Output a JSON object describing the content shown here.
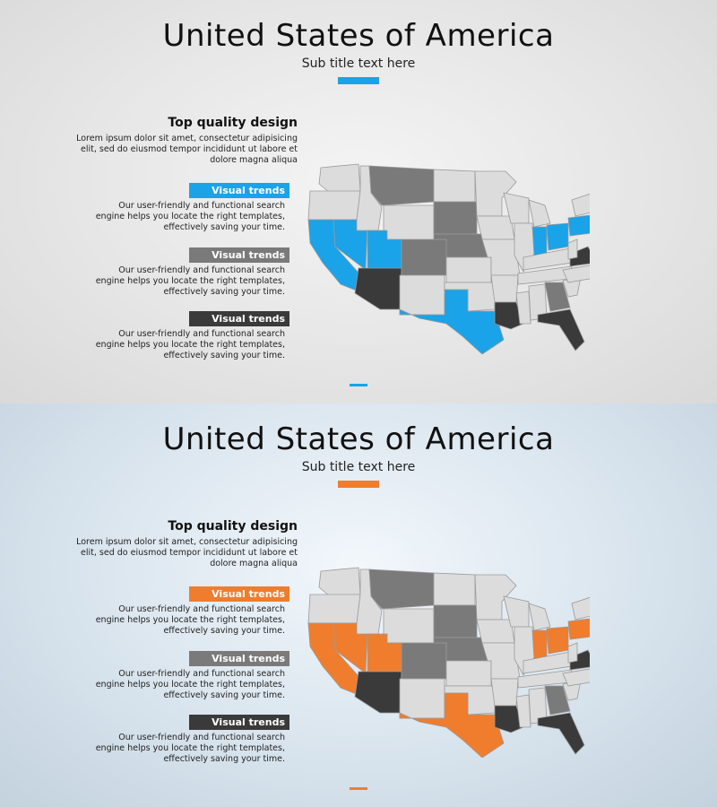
{
  "slides": [
    {
      "title": "United States of America",
      "subtitle": "Sub title text here",
      "accent_color": "#1aa3e8",
      "heading": "Top quality design",
      "intro": "Lorem ipsum dolor sit amet, consectetur adipisicing elit, sed do eiusmod tempor incididunt ut labore et dolore magna aliqua",
      "items": [
        {
          "label": "Visual trends",
          "description": "Our user-friendly and functional search engine helps you locate the right templates, effectively saving your time.",
          "color": "#1aa3e8"
        },
        {
          "label": "Visual trends",
          "description": "Our user-friendly and functional search engine helps you locate the right templates, effectively saving your time.",
          "color": "#7a7a7a"
        },
        {
          "label": "Visual trends",
          "description": "Our user-friendly and functional search engine helps you locate the right templates, effectively saving your time.",
          "color": "#3a3a3a"
        }
      ],
      "map": {
        "base_color": "#dcdcdc",
        "stroke": "#9a9a9a",
        "highlight": "accent",
        "medium": "#7a7a7a",
        "dark": "#3a3a3a"
      }
    },
    {
      "title": "United States of America",
      "subtitle": "Sub title text here",
      "accent_color": "#ef7d2d",
      "heading": "Top quality design",
      "intro": "Lorem ipsum dolor sit amet, consectetur adipisicing elit, sed do eiusmod tempor incididunt ut labore et dolore magna aliqua",
      "items": [
        {
          "label": "Visual trends",
          "description": "Our user-friendly and functional search engine helps you locate the right templates, effectively saving your time.",
          "color": "#ef7d2d"
        },
        {
          "label": "Visual trends",
          "description": "Our user-friendly and functional search engine helps you locate the right templates, effectively saving your time.",
          "color": "#7a7a7a"
        },
        {
          "label": "Visual trends",
          "description": "Our user-friendly and functional search engine helps you locate the right templates, effectively saving your time.",
          "color": "#3a3a3a"
        }
      ],
      "map": {
        "base_color": "#dcdcdc",
        "stroke": "#9a9a9a",
        "highlight": "accent",
        "medium": "#7a7a7a",
        "dark": "#3a3a3a"
      }
    }
  ]
}
